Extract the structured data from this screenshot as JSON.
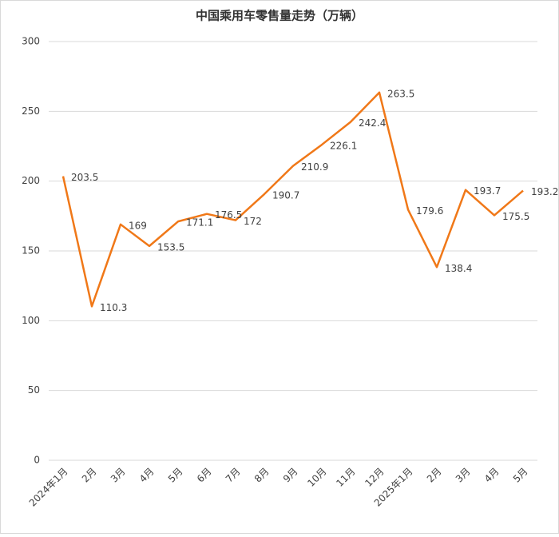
{
  "chart_data": {
    "type": "line",
    "title": "中国乘用车零售量走势（万辆）",
    "categories": [
      "2024年1月",
      "2月",
      "3月",
      "4月",
      "5月",
      "6月",
      "7月",
      "8月",
      "9月",
      "10月",
      "11月",
      "12月",
      "2025年1月",
      "2月",
      "3月",
      "4月",
      "5月"
    ],
    "series": [
      {
        "name": "零售量",
        "color": "#f07818",
        "values": [
          203.5,
          110.3,
          169,
          153.5,
          171.1,
          176.5,
          172,
          190.7,
          210.9,
          226.1,
          242.4,
          263.5,
          179.6,
          138.4,
          193.7,
          175.5,
          193.2
        ]
      }
    ],
    "ylim": [
      0,
      300
    ],
    "yticks": [
      0,
      50,
      100,
      150,
      200,
      250,
      300
    ],
    "grid": true
  }
}
